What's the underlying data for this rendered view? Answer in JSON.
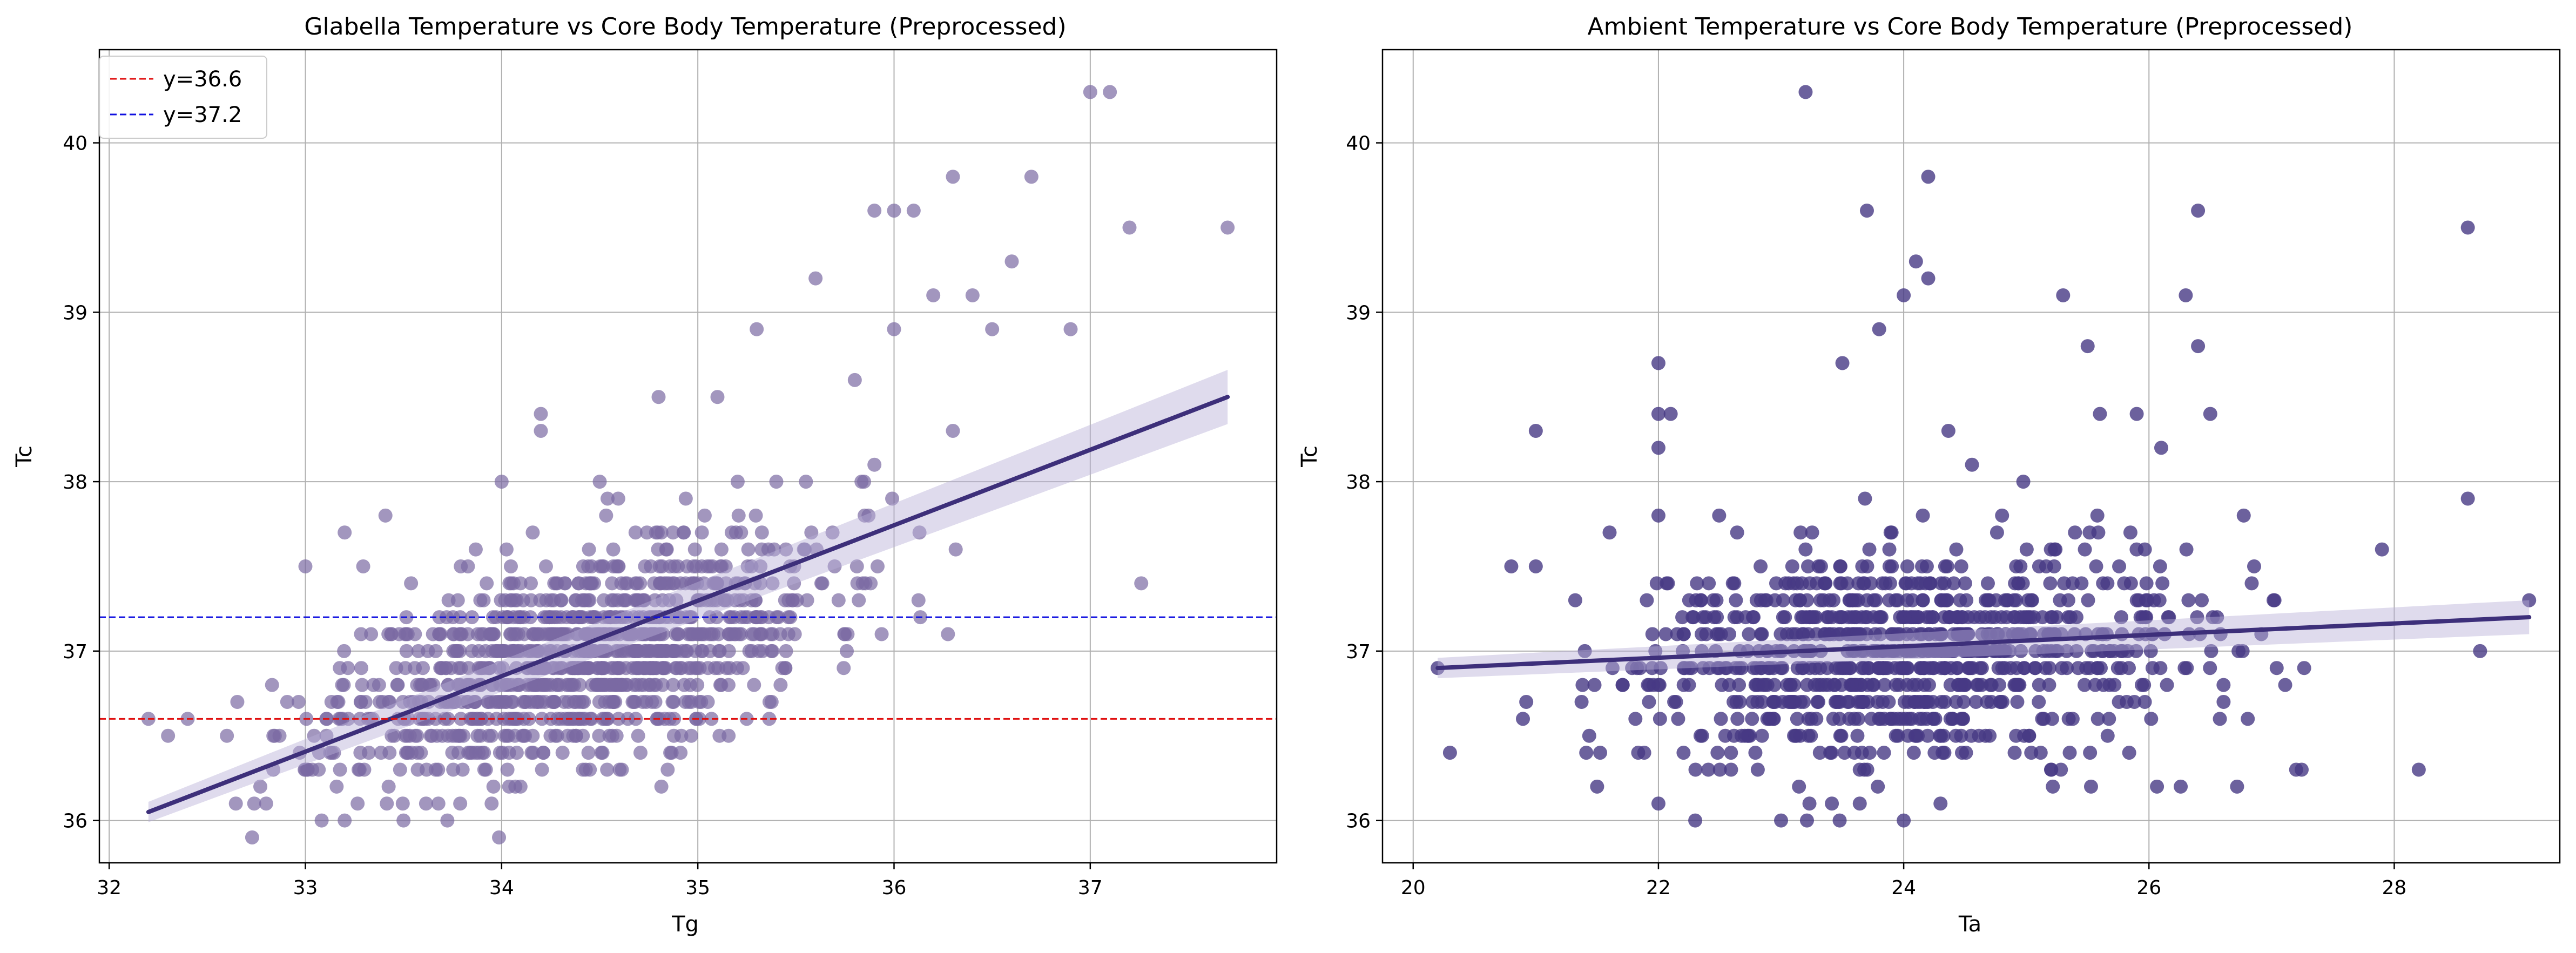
{
  "chart_data": [
    {
      "type": "scatter",
      "title": "Glabella Temperature vs Core Body Temperature (Preprocessed)",
      "xlabel": "Tg",
      "ylabel": "Tc",
      "xlim": [
        31.95,
        37.95
      ],
      "ylim": [
        35.75,
        40.55
      ],
      "xticks": [
        "32",
        "33",
        "34",
        "35",
        "36",
        "37"
      ],
      "yticks": [
        "36",
        "37",
        "38",
        "39",
        "40"
      ],
      "grid": true,
      "legend_position": "top-left",
      "point_color": "#7a6aa3",
      "point_opacity": 0.7,
      "regression": {
        "x_start": 32.2,
        "x_end": 37.7,
        "y_start": 36.05,
        "y_end": 38.5,
        "color": "#3d2f7a",
        "ci_color": "#b8afd6",
        "ci_halfwidth_start": 0.06,
        "ci_halfwidth_end": 0.16
      },
      "hlines": [
        {
          "y": 36.6,
          "label": "y=36.6",
          "color": "#e01010"
        },
        {
          "y": 37.2,
          "label": "y=37.2",
          "color": "#1010e0"
        }
      ],
      "outliers": [
        {
          "x": 32.2,
          "y": 36.6
        },
        {
          "x": 32.3,
          "y": 36.5
        },
        {
          "x": 32.4,
          "y": 36.6
        },
        {
          "x": 32.6,
          "y": 36.5
        },
        {
          "x": 32.8,
          "y": 36.1
        },
        {
          "x": 33.0,
          "y": 37.5
        },
        {
          "x": 33.2,
          "y": 37.7
        },
        {
          "x": 33.2,
          "y": 36.0
        },
        {
          "x": 33.5,
          "y": 36.0
        },
        {
          "x": 34.2,
          "y": 38.3
        },
        {
          "x": 34.2,
          "y": 38.4
        },
        {
          "x": 34.8,
          "y": 38.5
        },
        {
          "x": 35.1,
          "y": 38.5
        },
        {
          "x": 35.3,
          "y": 38.9
        },
        {
          "x": 35.6,
          "y": 39.2
        },
        {
          "x": 35.9,
          "y": 39.6
        },
        {
          "x": 36.0,
          "y": 39.6
        },
        {
          "x": 36.1,
          "y": 39.6
        },
        {
          "x": 36.2,
          "y": 39.1
        },
        {
          "x": 36.3,
          "y": 39.8
        },
        {
          "x": 36.4,
          "y": 39.1
        },
        {
          "x": 36.5,
          "y": 38.9
        },
        {
          "x": 36.6,
          "y": 39.3
        },
        {
          "x": 36.7,
          "y": 39.8
        },
        {
          "x": 36.9,
          "y": 38.9
        },
        {
          "x": 37.0,
          "y": 40.3
        },
        {
          "x": 37.1,
          "y": 40.3
        },
        {
          "x": 37.2,
          "y": 39.5
        },
        {
          "x": 37.7,
          "y": 39.5
        },
        {
          "x": 36.3,
          "y": 38.3
        },
        {
          "x": 35.8,
          "y": 38.6
        },
        {
          "x": 35.4,
          "y": 38.0
        },
        {
          "x": 35.9,
          "y": 38.1
        },
        {
          "x": 36.0,
          "y": 38.9
        },
        {
          "x": 34.0,
          "y": 38.0
        },
        {
          "x": 34.5,
          "y": 38.0
        }
      ],
      "cluster": {
        "center_x": 34.4,
        "spread_x": 0.62,
        "spread_y": 0.3,
        "intercept": 36.97,
        "slope": 0.32,
        "count": 1100,
        "seed": 11
      }
    },
    {
      "type": "scatter",
      "title": "Ambient Temperature vs Core Body Temperature (Preprocessed)",
      "xlabel": "Ta",
      "ylabel": "Tc",
      "xlim": [
        19.75,
        29.35
      ],
      "ylim": [
        35.75,
        40.55
      ],
      "xticks": [
        "20",
        "22",
        "24",
        "26",
        "28"
      ],
      "yticks": [
        "36",
        "37",
        "38",
        "39",
        "40"
      ],
      "grid": true,
      "point_color": "#473a84",
      "point_opacity": 0.8,
      "regression": {
        "x_start": 20.2,
        "x_end": 29.1,
        "y_start": 36.9,
        "y_end": 37.2,
        "color": "#3d2f7a",
        "ci_color": "#b8afd6",
        "ci_halfwidth_start": 0.06,
        "ci_halfwidth_end": 0.1
      },
      "outliers": [
        {
          "x": 20.2,
          "y": 36.9
        },
        {
          "x": 20.3,
          "y": 36.4
        },
        {
          "x": 21.0,
          "y": 38.3
        },
        {
          "x": 22.0,
          "y": 38.7
        },
        {
          "x": 22.0,
          "y": 38.4
        },
        {
          "x": 22.0,
          "y": 38.2
        },
        {
          "x": 22.0,
          "y": 37.8
        },
        {
          "x": 22.1,
          "y": 38.4
        },
        {
          "x": 23.2,
          "y": 40.3
        },
        {
          "x": 23.7,
          "y": 39.6
        },
        {
          "x": 24.0,
          "y": 39.1
        },
        {
          "x": 24.1,
          "y": 39.3
        },
        {
          "x": 24.2,
          "y": 39.8
        },
        {
          "x": 24.2,
          "y": 39.2
        },
        {
          "x": 25.3,
          "y": 39.1
        },
        {
          "x": 25.5,
          "y": 38.8
        },
        {
          "x": 26.3,
          "y": 39.1
        },
        {
          "x": 26.4,
          "y": 39.6
        },
        {
          "x": 26.4,
          "y": 38.8
        },
        {
          "x": 28.6,
          "y": 39.5
        },
        {
          "x": 28.6,
          "y": 37.9
        },
        {
          "x": 29.1,
          "y": 37.3
        },
        {
          "x": 28.7,
          "y": 37.0
        },
        {
          "x": 22.3,
          "y": 36.0
        },
        {
          "x": 23.0,
          "y": 36.0
        },
        {
          "x": 24.0,
          "y": 36.0
        },
        {
          "x": 24.3,
          "y": 36.1
        },
        {
          "x": 21.5,
          "y": 36.2
        },
        {
          "x": 22.0,
          "y": 36.1
        },
        {
          "x": 26.1,
          "y": 38.2
        },
        {
          "x": 26.5,
          "y": 38.4
        },
        {
          "x": 25.6,
          "y": 38.4
        },
        {
          "x": 25.9,
          "y": 38.4
        },
        {
          "x": 27.9,
          "y": 37.6
        },
        {
          "x": 28.2,
          "y": 36.3
        },
        {
          "x": 27.2,
          "y": 36.3
        },
        {
          "x": 21.0,
          "y": 37.5
        },
        {
          "x": 20.8,
          "y": 37.5
        },
        {
          "x": 23.5,
          "y": 38.7
        },
        {
          "x": 23.8,
          "y": 38.9
        }
      ],
      "cluster": {
        "center_x": 24.0,
        "spread_x": 1.15,
        "spread_y": 0.32,
        "intercept": 36.98,
        "slope": 0.03,
        "count": 900,
        "seed": 29
      }
    }
  ]
}
